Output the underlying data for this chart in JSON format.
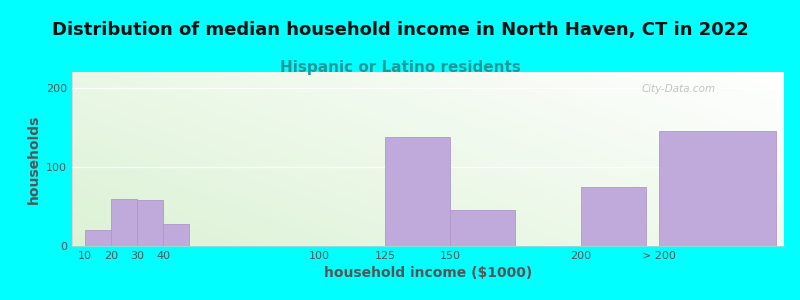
{
  "title": "Distribution of median household income in North Haven, CT in 2022",
  "subtitle": "Hispanic or Latino residents",
  "xlabel": "household income ($1000)",
  "ylabel": "households",
  "background_outer": "#00FFFF",
  "bar_color": "#C0AADC",
  "bar_edge_color": "#B098C8",
  "categories": [
    "10",
    "20",
    "30",
    "40",
    "100",
    "125",
    "150",
    "200",
    "> 200"
  ],
  "bar_lefts": [
    10,
    20,
    30,
    40,
    100,
    125,
    150,
    200,
    230
  ],
  "bar_widths": [
    10,
    10,
    10,
    10,
    25,
    25,
    25,
    25,
    45
  ],
  "bar_values": [
    20,
    60,
    58,
    28,
    0,
    138,
    45,
    75,
    145
  ],
  "xlim": [
    5,
    278
  ],
  "ylim": [
    0,
    220
  ],
  "yticks": [
    0,
    100,
    200
  ],
  "xtick_positions": [
    10,
    20,
    30,
    40,
    100,
    125,
    150,
    200,
    230
  ],
  "xtick_labels": [
    "10",
    "20",
    "30",
    "40",
    "100",
    "125",
    "150",
    "200",
    "> 200"
  ],
  "watermark": "City-Data.com",
  "title_fontsize": 13,
  "subtitle_fontsize": 11,
  "axis_label_fontsize": 10,
  "tick_fontsize": 8,
  "subtitle_color": "#1E9999",
  "title_color": "#111111",
  "tick_color": "#555555",
  "label_color": "#555555"
}
